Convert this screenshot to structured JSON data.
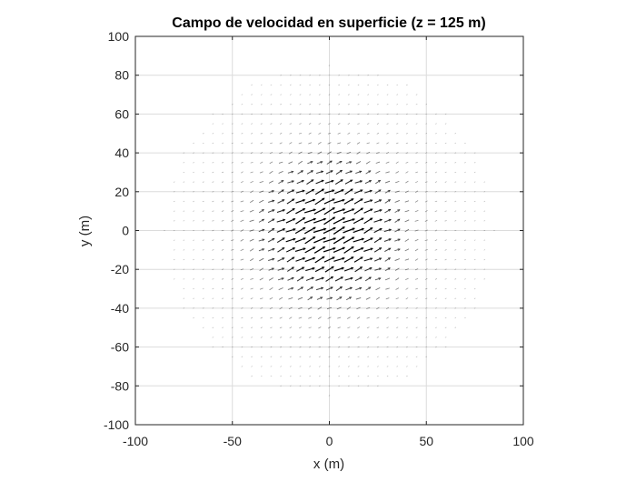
{
  "chart_data": {
    "type": "quiver",
    "title": "Campo de velocidad en superficie (z = 125 m)",
    "xlabel": "x (m)",
    "ylabel": "y (m)",
    "xlim": [
      -100,
      100
    ],
    "ylim": [
      -100,
      100
    ],
    "xticks": [
      -100,
      -50,
      0,
      50,
      100
    ],
    "yticks": [
      -100,
      -80,
      -60,
      -40,
      -20,
      0,
      20,
      40,
      60,
      80,
      100
    ],
    "grid": true,
    "grid_spacing": 5,
    "field_extent": 85,
    "core_radius": 25,
    "flow_direction_deg": 25,
    "arrow_color": "#000000"
  }
}
